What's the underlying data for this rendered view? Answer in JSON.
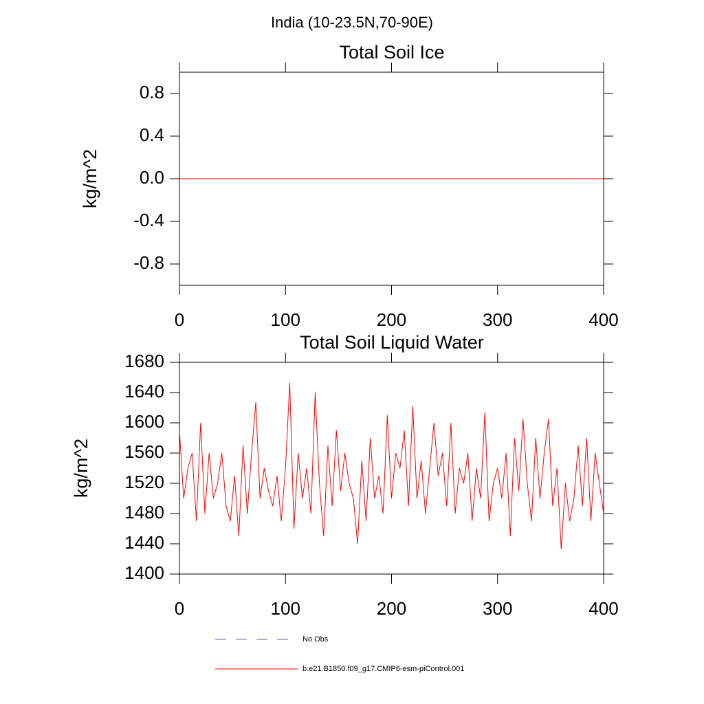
{
  "title": "India (10-23.5N,70-90E)",
  "chart_data": [
    {
      "type": "line",
      "title": "Total Soil Ice",
      "y_label": "kg/m^2",
      "xlim": [
        0,
        400
      ],
      "xticks": [
        0,
        100,
        200,
        300,
        400
      ],
      "ylim": [
        -1,
        1
      ],
      "yticks": [
        -0.8,
        -0.4,
        {
          "value": 0,
          "label": "0.0"
        },
        0.4,
        0.8
      ],
      "x": [
        0,
        4,
        8,
        12,
        16,
        20,
        24,
        28,
        32,
        36,
        40,
        44,
        48,
        52,
        56,
        60,
        64,
        68,
        72,
        76,
        80,
        84,
        88,
        92,
        96,
        100,
        104,
        108,
        112,
        116,
        120,
        124,
        128,
        132,
        136,
        140,
        144,
        148,
        152,
        156,
        160,
        164,
        168,
        172,
        176,
        180,
        184,
        188,
        192,
        196,
        200,
        204,
        208,
        212,
        216,
        220,
        224,
        228,
        232,
        236,
        240,
        244,
        248,
        252,
        256,
        260,
        264,
        268,
        272,
        276,
        280,
        284,
        288,
        292,
        296,
        300,
        304,
        308,
        312,
        316,
        320,
        324,
        328,
        332,
        336,
        340,
        344,
        348,
        352,
        356,
        360,
        364,
        368,
        372,
        376,
        380,
        384,
        388,
        392,
        396,
        400
      ],
      "series": [
        {
          "color": "#ff0000",
          "values": [
            0,
            0,
            0,
            0,
            0,
            0,
            0,
            0,
            0,
            0,
            0,
            0,
            0,
            0,
            0,
            0,
            0,
            0,
            0,
            0,
            0,
            0,
            0,
            0,
            0,
            0,
            0,
            0,
            0,
            0,
            0,
            0,
            0,
            0,
            0,
            0,
            0,
            0,
            0,
            0,
            0,
            0,
            0,
            0,
            0,
            0,
            0,
            0,
            0,
            0,
            0,
            0,
            0,
            0,
            0,
            0,
            0,
            0,
            0,
            0,
            0,
            0,
            0,
            0,
            0,
            0,
            0,
            0,
            0,
            0,
            0,
            0,
            0,
            0,
            0,
            0,
            0,
            0,
            0,
            0,
            0,
            0,
            0,
            0,
            0,
            0,
            0,
            0,
            0,
            0,
            0,
            0,
            0,
            0,
            0,
            0,
            0,
            0,
            0,
            0,
            0
          ]
        }
      ]
    },
    {
      "type": "line",
      "title": "Total Soil Liquid Water",
      "y_label": "kg/m^2",
      "xlim": [
        0,
        400
      ],
      "xticks": [
        0,
        100,
        200,
        300,
        400
      ],
      "ylim": [
        1400,
        1680
      ],
      "yticks": [
        1400,
        1440,
        1480,
        1520,
        1560,
        1600,
        1640,
        1680
      ],
      "x": [
        0,
        4,
        8,
        12,
        16,
        20,
        24,
        28,
        32,
        36,
        40,
        44,
        48,
        52,
        56,
        60,
        64,
        68,
        72,
        76,
        80,
        84,
        88,
        92,
        96,
        100,
        104,
        108,
        112,
        116,
        120,
        124,
        128,
        132,
        136,
        140,
        144,
        148,
        152,
        156,
        160,
        164,
        168,
        172,
        176,
        180,
        184,
        188,
        192,
        196,
        200,
        204,
        208,
        212,
        216,
        220,
        224,
        228,
        232,
        236,
        240,
        244,
        248,
        252,
        256,
        260,
        264,
        268,
        272,
        276,
        280,
        284,
        288,
        292,
        296,
        300,
        304,
        308,
        312,
        316,
        320,
        324,
        328,
        332,
        336,
        340,
        344,
        348,
        352,
        356,
        360,
        364,
        368,
        372,
        376,
        380,
        384,
        388,
        392,
        396,
        400
      ],
      "series": [
        {
          "color": "#ff0000",
          "values": [
            1590,
            1500,
            1540,
            1560,
            1470,
            1600,
            1480,
            1560,
            1500,
            1520,
            1560,
            1490,
            1470,
            1530,
            1450,
            1570,
            1480,
            1560,
            1627,
            1500,
            1540,
            1510,
            1490,
            1530,
            1470,
            1540,
            1653,
            1460,
            1560,
            1500,
            1540,
            1480,
            1640,
            1520,
            1450,
            1570,
            1490,
            1590,
            1510,
            1560,
            1520,
            1500,
            1440,
            1550,
            1470,
            1580,
            1500,
            1530,
            1480,
            1610,
            1500,
            1560,
            1540,
            1590,
            1490,
            1622,
            1500,
            1550,
            1480,
            1540,
            1600,
            1530,
            1560,
            1490,
            1600,
            1480,
            1540,
            1520,
            1560,
            1470,
            1540,
            1500,
            1614,
            1470,
            1520,
            1540,
            1500,
            1560,
            1450,
            1580,
            1510,
            1605,
            1520,
            1470,
            1580,
            1500,
            1560,
            1605,
            1490,
            1540,
            1433,
            1520,
            1470,
            1500,
            1570,
            1490,
            1580,
            1470,
            1560,
            1520,
            1480
          ]
        }
      ]
    }
  ],
  "legend": [
    {
      "name": "No Obs",
      "color": "#5a6a9a",
      "style": "dashed"
    },
    {
      "name": "b.e21.B1850.f09_g17.CMIP6-esm-piControl.001",
      "color": "#ff0000",
      "style": "solid"
    }
  ]
}
